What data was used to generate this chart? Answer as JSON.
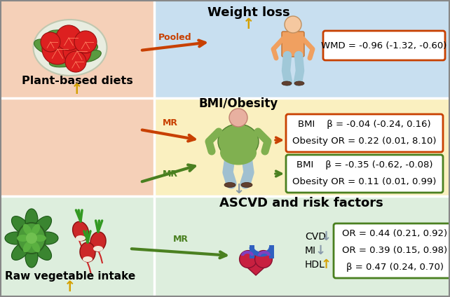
{
  "bg_top_left": "#f5d0b8",
  "bg_top_right": "#c8dff0",
  "bg_mid_left": "#f5d0b8",
  "bg_mid_right": "#faf0c0",
  "bg_bot_left": "#ddeedd",
  "bg_bot_right": "#ddeedd",
  "box1_text": "WMD = -0.96 (-1.32, -0.60)",
  "box1_border": "#c84000",
  "box2_line1": "BMI    β = -0.04 (-0.24, 0.16)",
  "box2_line2": "Obesity OR = 0.22 (0.01, 8.10)",
  "box2_border": "#c84000",
  "box3_line1": "BMI    β = -0.35 (-0.62, -0.08)",
  "box3_line2": "Obesity OR = 0.11 (0.01, 0.99)",
  "box3_border": "#4a8020",
  "box4_line1": "OR = 0.44 (0.21, 0.92)",
  "box4_line2": "OR = 0.39 (0.15, 0.98)",
  "box4_line3": "β = 0.47 (0.24, 0.70)",
  "box4_border": "#4a8020",
  "arrow_orange": "#c84000",
  "arrow_green": "#4a8020",
  "arrow_gold": "#d4a000",
  "arrow_gray": "#8899aa",
  "label_plant": "Plant-based diets",
  "label_raw": "Raw vegetable intake",
  "label_weight": "Weight loss",
  "label_bmi": "BMI/Obesity",
  "label_ascvd": "ASCVD and risk factors",
  "label_pooled": "Pooled",
  "label_mr": "MR",
  "label_cvd": "CVD",
  "label_mi": "MI",
  "label_hdl": "HDL"
}
